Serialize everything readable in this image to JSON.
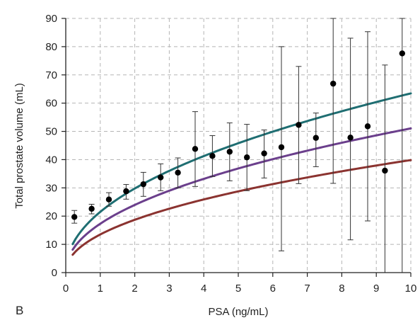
{
  "chart_data": {
    "type": "scatter",
    "panel_label": "B",
    "title": "",
    "xlabel": "PSA (ng/mL)",
    "ylabel": "Total prostate volume (mL)",
    "xlim": [
      0,
      10
    ],
    "ylim": [
      0,
      90
    ],
    "x_ticks": [
      0,
      1,
      2,
      3,
      4,
      5,
      6,
      7,
      8,
      9,
      10
    ],
    "y_ticks": [
      0,
      10,
      20,
      30,
      40,
      50,
      60,
      70,
      80,
      90
    ],
    "grid": true,
    "points": [
      {
        "x": 0.25,
        "y": 19.7,
        "lo": 17.5,
        "hi": 22.0
      },
      {
        "x": 0.75,
        "y": 22.6,
        "lo": 20.8,
        "hi": 24.2
      },
      {
        "x": 1.25,
        "y": 25.9,
        "lo": 23.5,
        "hi": 28.3
      },
      {
        "x": 1.75,
        "y": 28.8,
        "lo": 26.0,
        "hi": 31.2
      },
      {
        "x": 2.25,
        "y": 31.3,
        "lo": 27.0,
        "hi": 35.5
      },
      {
        "x": 2.75,
        "y": 33.7,
        "lo": 29.0,
        "hi": 38.5
      },
      {
        "x": 3.25,
        "y": 35.4,
        "lo": 30.0,
        "hi": 40.6
      },
      {
        "x": 3.75,
        "y": 43.8,
        "lo": 30.5,
        "hi": 57.0
      },
      {
        "x": 4.25,
        "y": 41.3,
        "lo": 34.0,
        "hi": 48.5
      },
      {
        "x": 4.75,
        "y": 42.8,
        "lo": 32.5,
        "hi": 53.0
      },
      {
        "x": 5.25,
        "y": 40.8,
        "lo": 29.0,
        "hi": 52.5
      },
      {
        "x": 5.75,
        "y": 42.2,
        "lo": 33.5,
        "hi": 50.5
      },
      {
        "x": 6.25,
        "y": 44.4,
        "lo": 7.7,
        "hi": 80.0
      },
      {
        "x": 6.75,
        "y": 52.3,
        "lo": 31.5,
        "hi": 73.0
      },
      {
        "x": 7.25,
        "y": 47.7,
        "lo": 37.5,
        "hi": 56.5
      },
      {
        "x": 7.75,
        "y": 66.9,
        "lo": 31.6,
        "hi": 90.0
      },
      {
        "x": 8.25,
        "y": 47.8,
        "lo": 11.6,
        "hi": 83.0
      },
      {
        "x": 8.75,
        "y": 51.8,
        "lo": 18.3,
        "hi": 85.3
      },
      {
        "x": 9.25,
        "y": 36.1,
        "lo": 0,
        "hi": 73.5
      },
      {
        "x": 9.75,
        "y": 77.6,
        "lo": 0,
        "hi": 90.0
      }
    ],
    "series": [
      {
        "color": "#1f6e72",
        "a": 21.5,
        "b": 0.47
      },
      {
        "color": "#6b3f8c",
        "a": 17.3,
        "b": 0.47
      },
      {
        "color": "#8b3330",
        "a": 13.5,
        "b": 0.47
      }
    ],
    "x_curve_start": 0.2,
    "x_curve_end": 10.0
  }
}
